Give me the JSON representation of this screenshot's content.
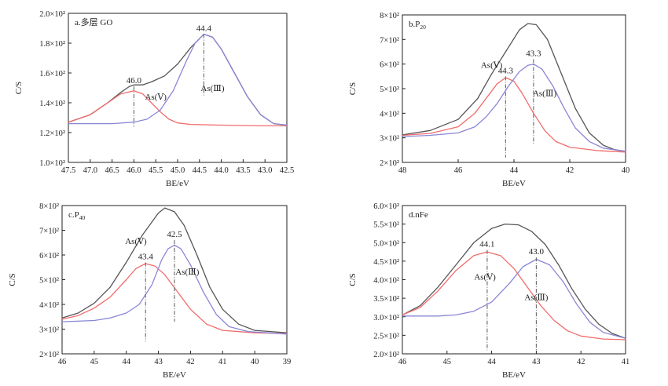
{
  "colors": {
    "total": "#555555",
    "as_v": "#f26b6b",
    "as_iii": "#8a86d6",
    "axis": "#222222",
    "marker": "#666666"
  },
  "chart_data": [
    {
      "type": "line",
      "panel_label": "a.多层 GO",
      "xlabel": "BE/eV",
      "ylabel": "C/S",
      "xlim": [
        47.5,
        42.5
      ],
      "ylim": [
        100,
        200
      ],
      "x_ticks": [
        "47.5",
        "47.0",
        "46.5",
        "46.0",
        "45.5",
        "45.0",
        "44.5",
        "44.0",
        "43.5",
        "43.0",
        "42.5"
      ],
      "y_ticks": [
        "1.0×10²",
        "1.2×10²",
        "1.4×10²",
        "1.6×10²",
        "1.8×10²",
        "2.0×10²"
      ],
      "series": [
        {
          "key": "total",
          "color_key": "total",
          "points": [
            [
              47.5,
              127
            ],
            [
              47.0,
              132
            ],
            [
              46.6,
              140
            ],
            [
              46.3,
              147
            ],
            [
              46.1,
              151
            ],
            [
              46.0,
              152
            ],
            [
              45.8,
              152
            ],
            [
              45.6,
              154
            ],
            [
              45.3,
              158
            ],
            [
              45.0,
              166
            ],
            [
              44.7,
              177
            ],
            [
              44.4,
              186
            ],
            [
              44.2,
              184
            ],
            [
              44.0,
              176
            ],
            [
              43.7,
              160
            ],
            [
              43.4,
              144
            ],
            [
              43.1,
              132
            ],
            [
              42.8,
              126
            ],
            [
              42.5,
              125
            ]
          ]
        },
        {
          "key": "as_v",
          "name": "As(Ⅴ)",
          "color_key": "as_v",
          "points": [
            [
              47.5,
              127
            ],
            [
              47.0,
              132
            ],
            [
              46.6,
              140
            ],
            [
              46.3,
              146
            ],
            [
              46.0,
              148
            ],
            [
              45.8,
              146
            ],
            [
              45.6,
              140
            ],
            [
              45.4,
              134
            ],
            [
              45.2,
              129
            ],
            [
              45.0,
              126.5
            ],
            [
              44.7,
              125.5
            ],
            [
              44.0,
              125
            ],
            [
              43.0,
              124.5
            ],
            [
              42.5,
              124.5
            ]
          ]
        },
        {
          "key": "as_iii",
          "name": "As(Ⅲ)",
          "color_key": "as_iii",
          "points": [
            [
              47.5,
              126
            ],
            [
              46.5,
              126
            ],
            [
              46.0,
              127
            ],
            [
              45.7,
              129
            ],
            [
              45.4,
              135
            ],
            [
              45.1,
              148
            ],
            [
              44.8,
              168
            ],
            [
              44.6,
              180
            ],
            [
              44.4,
              186
            ],
            [
              44.2,
              184
            ],
            [
              44.0,
              176
            ],
            [
              43.7,
              160
            ],
            [
              43.4,
              144
            ],
            [
              43.1,
              132
            ],
            [
              42.8,
              126
            ],
            [
              42.5,
              125
            ]
          ]
        }
      ],
      "markers": [
        {
          "x": 46.0,
          "label": "46.0",
          "y_top": 151,
          "y_bottom": 124
        },
        {
          "x": 44.4,
          "label": "44.4",
          "y_top": 186,
          "y_bottom": 145
        }
      ],
      "annotations": [
        {
          "text": "As(Ⅴ)",
          "x": 45.5,
          "y": 142
        },
        {
          "text": "As(Ⅲ)",
          "x": 44.2,
          "y": 148
        }
      ]
    },
    {
      "type": "line",
      "panel_label": "b.P",
      "panel_label_sub": "20",
      "xlabel": "BE/eV",
      "ylabel": "C/S",
      "xlim": [
        48,
        40
      ],
      "ylim": [
        200,
        800
      ],
      "x_ticks": [
        "48",
        "46",
        "44",
        "42",
        "40"
      ],
      "y_ticks": [
        "2×10²",
        "3×10²",
        "4×10²",
        "5×10²",
        "6×10²",
        "7×10²",
        "8×10²"
      ],
      "series": [
        {
          "key": "total",
          "color_key": "total",
          "points": [
            [
              48,
              312
            ],
            [
              47,
              330
            ],
            [
              46,
              375
            ],
            [
              45.3,
              460
            ],
            [
              44.8,
              560
            ],
            [
              44.3,
              650
            ],
            [
              43.8,
              740
            ],
            [
              43.5,
              765
            ],
            [
              43.2,
              760
            ],
            [
              42.8,
              700
            ],
            [
              42.3,
              560
            ],
            [
              41.8,
              420
            ],
            [
              41.3,
              320
            ],
            [
              40.8,
              270
            ],
            [
              40.4,
              252
            ],
            [
              40,
              245
            ]
          ]
        },
        {
          "key": "as_v",
          "name": "As(Ⅴ)",
          "color_key": "as_v",
          "points": [
            [
              48,
              310
            ],
            [
              47,
              318
            ],
            [
              46,
              345
            ],
            [
              45.4,
              400
            ],
            [
              45,
              460
            ],
            [
              44.6,
              520
            ],
            [
              44.3,
              545
            ],
            [
              44.0,
              530
            ],
            [
              43.7,
              480
            ],
            [
              43.3,
              400
            ],
            [
              42.9,
              330
            ],
            [
              42.5,
              285
            ],
            [
              42,
              262
            ],
            [
              41,
              248
            ],
            [
              40,
              242
            ]
          ]
        },
        {
          "key": "as_iii",
          "name": "As(Ⅲ)",
          "color_key": "as_iii",
          "points": [
            [
              48,
              305
            ],
            [
              47,
              310
            ],
            [
              46,
              320
            ],
            [
              45.4,
              345
            ],
            [
              45,
              385
            ],
            [
              44.6,
              440
            ],
            [
              44.2,
              510
            ],
            [
              43.8,
              570
            ],
            [
              43.5,
              595
            ],
            [
              43.3,
              600
            ],
            [
              43.0,
              580
            ],
            [
              42.6,
              510
            ],
            [
              42.2,
              420
            ],
            [
              41.8,
              340
            ],
            [
              41.3,
              285
            ],
            [
              40.8,
              258
            ],
            [
              40,
              245
            ]
          ]
        }
      ],
      "markers": [
        {
          "x": 44.3,
          "label": "44.3",
          "y_top": 550,
          "y_bottom": 220
        },
        {
          "x": 43.3,
          "label": "43.3",
          "y_top": 620,
          "y_bottom": 270
        }
      ],
      "annotations": [
        {
          "text": "As(Ⅴ)",
          "x": 44.8,
          "y": 585
        },
        {
          "text": "As(Ⅲ)",
          "x": 42.9,
          "y": 470
        }
      ]
    },
    {
      "type": "line",
      "panel_label": "c.P",
      "panel_label_sub": "40",
      "xlabel": "BE/eV",
      "ylabel": "C/S",
      "xlim": [
        46,
        39
      ],
      "ylim": [
        200,
        800
      ],
      "x_ticks": [
        "46",
        "45",
        "44",
        "43",
        "42",
        "41",
        "40",
        "39"
      ],
      "y_ticks": [
        "2×10²",
        "3×10²",
        "4×10²",
        "5×10²",
        "6×10²",
        "7×10²",
        "8×10²"
      ],
      "series": [
        {
          "key": "total",
          "color_key": "total",
          "points": [
            [
              46,
              345
            ],
            [
              45.5,
              365
            ],
            [
              45,
              405
            ],
            [
              44.5,
              470
            ],
            [
              44,
              570
            ],
            [
              43.5,
              680
            ],
            [
              43.0,
              770
            ],
            [
              42.8,
              790
            ],
            [
              42.5,
              775
            ],
            [
              42.2,
              720
            ],
            [
              41.8,
              600
            ],
            [
              41.4,
              470
            ],
            [
              41,
              380
            ],
            [
              40.5,
              320
            ],
            [
              40,
              295
            ],
            [
              39,
              285
            ]
          ]
        },
        {
          "key": "as_v",
          "name": "As(Ⅴ)",
          "color_key": "as_v",
          "points": [
            [
              46,
              340
            ],
            [
              45.5,
              355
            ],
            [
              45,
              385
            ],
            [
              44.5,
              430
            ],
            [
              44,
              500
            ],
            [
              43.7,
              545
            ],
            [
              43.4,
              565
            ],
            [
              43.1,
              555
            ],
            [
              42.8,
              520
            ],
            [
              42.4,
              450
            ],
            [
              42,
              380
            ],
            [
              41.5,
              320
            ],
            [
              41,
              295
            ],
            [
              40,
              285
            ],
            [
              39,
              282
            ]
          ]
        },
        {
          "key": "as_iii",
          "name": "As(Ⅲ)",
          "color_key": "as_iii",
          "points": [
            [
              46,
              330
            ],
            [
              45,
              335
            ],
            [
              44.5,
              345
            ],
            [
              44,
              365
            ],
            [
              43.6,
              400
            ],
            [
              43.2,
              480
            ],
            [
              42.9,
              580
            ],
            [
              42.7,
              625
            ],
            [
              42.5,
              640
            ],
            [
              42.3,
              625
            ],
            [
              42.0,
              560
            ],
            [
              41.6,
              450
            ],
            [
              41.2,
              360
            ],
            [
              40.8,
              310
            ],
            [
              40.2,
              290
            ],
            [
              39,
              280
            ]
          ]
        }
      ],
      "markers": [
        {
          "x": 43.4,
          "label": "43.4",
          "y_top": 570,
          "y_bottom": 250
        },
        {
          "x": 42.5,
          "label": "42.5",
          "y_top": 660,
          "y_bottom": 330
        }
      ],
      "annotations": [
        {
          "text": "As(Ⅴ)",
          "x": 43.7,
          "y": 645
        },
        {
          "text": "As(Ⅲ)",
          "x": 42.1,
          "y": 520
        }
      ]
    },
    {
      "type": "line",
      "panel_label": "d.nFe",
      "xlabel": "BE/eV",
      "ylabel": "C/S",
      "xlim": [
        46,
        41
      ],
      "ylim": [
        200,
        600
      ],
      "x_ticks": [
        "46",
        "45",
        "44",
        "43",
        "42",
        "41"
      ],
      "y_ticks": [
        "2.0×10²",
        "2.5×10²",
        "3.0×10²",
        "3.5×10²",
        "4.0×10²",
        "4.5×10²",
        "5.0×10²",
        "5.5×10²",
        "6.0×10²"
      ],
      "series": [
        {
          "key": "total",
          "color_key": "total",
          "points": [
            [
              46,
              305
            ],
            [
              45.6,
              330
            ],
            [
              45.2,
              380
            ],
            [
              44.8,
              440
            ],
            [
              44.4,
              500
            ],
            [
              44.0,
              538
            ],
            [
              43.7,
              550
            ],
            [
              43.4,
              548
            ],
            [
              43.1,
              530
            ],
            [
              42.8,
              495
            ],
            [
              42.5,
              440
            ],
            [
              42.2,
              375
            ],
            [
              41.9,
              320
            ],
            [
              41.6,
              280
            ],
            [
              41.3,
              255
            ],
            [
              41,
              242
            ]
          ]
        },
        {
          "key": "as_v",
          "name": "As(Ⅴ)",
          "color_key": "as_v",
          "points": [
            [
              46,
              305
            ],
            [
              45.6,
              325
            ],
            [
              45.2,
              370
            ],
            [
              44.8,
              425
            ],
            [
              44.4,
              465
            ],
            [
              44.1,
              475
            ],
            [
              43.8,
              465
            ],
            [
              43.5,
              430
            ],
            [
              43.2,
              380
            ],
            [
              42.9,
              330
            ],
            [
              42.6,
              290
            ],
            [
              42.3,
              262
            ],
            [
              42.0,
              248
            ],
            [
              41.5,
              240
            ],
            [
              41,
              238
            ]
          ]
        },
        {
          "key": "as_iii",
          "name": "As(Ⅲ)",
          "color_key": "as_iii",
          "points": [
            [
              46,
              302
            ],
            [
              45.2,
              302
            ],
            [
              44.8,
              305
            ],
            [
              44.4,
              315
            ],
            [
              44.0,
              340
            ],
            [
              43.6,
              390
            ],
            [
              43.3,
              435
            ],
            [
              43.0,
              455
            ],
            [
              42.7,
              440
            ],
            [
              42.4,
              395
            ],
            [
              42.1,
              335
            ],
            [
              41.8,
              285
            ],
            [
              41.5,
              258
            ],
            [
              41,
              242
            ]
          ]
        }
      ],
      "markers": [
        {
          "x": 44.1,
          "label": "44.1",
          "y_top": 480,
          "y_bottom": 210
        },
        {
          "x": 43.0,
          "label": "43.0",
          "y_top": 460,
          "y_bottom": 210
        }
      ],
      "annotations": [
        {
          "text": "As(Ⅴ)",
          "x": 44.15,
          "y": 400
        },
        {
          "text": "As(Ⅲ)",
          "x": 43.0,
          "y": 345
        }
      ]
    }
  ]
}
